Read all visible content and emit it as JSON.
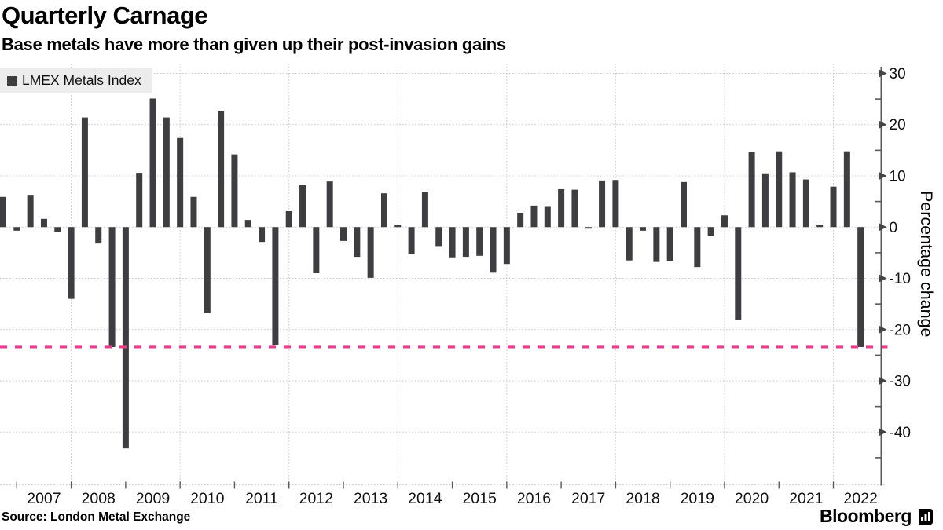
{
  "header": {
    "title": "Quarterly Carnage",
    "subtitle": "Base metals have more than given up their post-invasion gains"
  },
  "legend": {
    "label": "LMEX Metals Index",
    "swatch_color": "#3e3e40"
  },
  "y_axis": {
    "title": "Percentage change",
    "major_ticks": [
      30,
      20,
      10,
      0,
      -10,
      -20,
      -30,
      -40
    ],
    "minor_step": 5,
    "domain_top": 31.3,
    "domain_bottom": -50.3
  },
  "x_axis": {
    "year_labels": [
      "2007",
      "2008",
      "2009",
      "2010",
      "2011",
      "2012",
      "2013",
      "2014",
      "2015",
      "2016",
      "2017",
      "2018",
      "2019",
      "2020",
      "2021",
      "2022"
    ]
  },
  "reference_line": {
    "value": -23.4,
    "color": "#ee3a8c",
    "style": "dashed"
  },
  "source": "Source: London Metal Exchange",
  "branding": {
    "logo_text": "Bloomberg",
    "logo_icon": "bar-chart-bubble-icon"
  },
  "colors": {
    "bar": "#3e3e40",
    "grid": "#c9c9c9",
    "axis": "#58595b",
    "tick_label": "#111111"
  },
  "chart_data": {
    "type": "bar",
    "title": "Quarterly Carnage",
    "subtitle": "Base metals have more than given up their post-invasion gains",
    "series_name": "LMEX Metals Index",
    "ylabel": "Percentage change",
    "ylim": [
      -50.3,
      31.3
    ],
    "grid": true,
    "legend_position": "top-left",
    "reference_line_value": -23.4,
    "x": [
      "2006 Q3",
      "2006 Q4",
      "2007 Q1",
      "2007 Q2",
      "2007 Q3",
      "2007 Q4",
      "2008 Q1",
      "2008 Q2",
      "2008 Q3",
      "2008 Q4",
      "2009 Q1",
      "2009 Q2",
      "2009 Q3",
      "2009 Q4",
      "2010 Q1",
      "2010 Q2",
      "2010 Q3",
      "2010 Q4",
      "2011 Q1",
      "2011 Q2",
      "2011 Q3",
      "2011 Q4",
      "2012 Q1",
      "2012 Q2",
      "2012 Q3",
      "2012 Q4",
      "2013 Q1",
      "2013 Q2",
      "2013 Q3",
      "2013 Q4",
      "2014 Q1",
      "2014 Q2",
      "2014 Q3",
      "2014 Q4",
      "2015 Q1",
      "2015 Q2",
      "2015 Q3",
      "2015 Q4",
      "2016 Q1",
      "2016 Q2",
      "2016 Q3",
      "2016 Q4",
      "2017 Q1",
      "2017 Q2",
      "2017 Q3",
      "2017 Q4",
      "2018 Q1",
      "2018 Q2",
      "2018 Q3",
      "2018 Q4",
      "2019 Q1",
      "2019 Q2",
      "2019 Q3",
      "2019 Q4",
      "2020 Q1",
      "2020 Q2",
      "2020 Q3",
      "2020 Q4",
      "2021 Q1",
      "2021 Q2",
      "2021 Q3",
      "2021 Q4",
      "2022 Q1",
      "2022 Q2"
    ],
    "values": [
      5.9,
      -0.7,
      6.3,
      1.6,
      -0.9,
      -14.0,
      21.4,
      -3.2,
      -23.4,
      -43.2,
      10.6,
      25.1,
      21.4,
      17.4,
      5.9,
      -16.8,
      22.6,
      14.2,
      1.4,
      -2.9,
      -23.0,
      3.1,
      8.2,
      -9.0,
      8.9,
      -2.7,
      -5.8,
      -9.9,
      6.6,
      0.5,
      -5.3,
      6.9,
      -3.7,
      -5.9,
      -5.8,
      -5.6,
      -8.9,
      -7.2,
      2.8,
      4.2,
      4.1,
      7.4,
      7.3,
      -0.3,
      9.1,
      9.2,
      -6.5,
      -0.7,
      -6.8,
      -6.6,
      8.8,
      -7.8,
      -1.7,
      2.3,
      -18.1,
      14.6,
      10.5,
      14.8,
      10.7,
      9.3,
      0.5,
      7.9,
      14.8,
      -23.4
    ]
  }
}
